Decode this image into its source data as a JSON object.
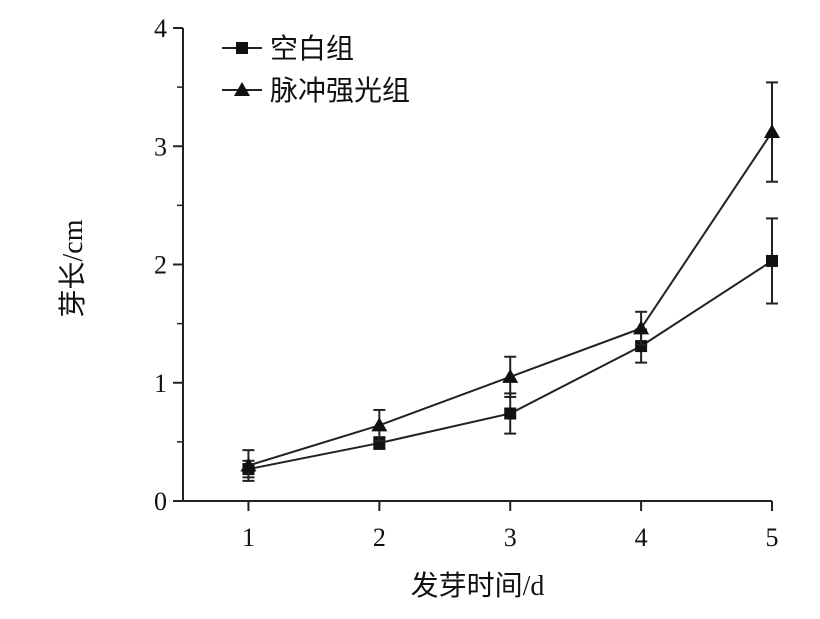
{
  "chart_data": {
    "type": "line",
    "xlabel": "发芽时间/d",
    "ylabel": "芽长/cm",
    "x": [
      1,
      2,
      3,
      4,
      5
    ],
    "xlim": [
      0.5,
      5
    ],
    "ylim": [
      0,
      4
    ],
    "xticks": [
      "1",
      "2",
      "3",
      "4",
      "5"
    ],
    "yticks": [
      "0",
      "1",
      "2",
      "3",
      "4"
    ],
    "grid": false,
    "legend_position": "top-left",
    "series": [
      {
        "name": "空白组",
        "marker": "square",
        "values": [
          0.27,
          0.49,
          0.74,
          1.31,
          2.03
        ],
        "errors": [
          0.07,
          0.05,
          0.17,
          0.14,
          0.36
        ]
      },
      {
        "name": "脉冲强光组",
        "marker": "triangle",
        "values": [
          0.3,
          0.64,
          1.05,
          1.46,
          3.12
        ],
        "errors": [
          0.13,
          0.13,
          0.17,
          0.14,
          0.42
        ]
      }
    ],
    "colors": {
      "line": "#222222",
      "marker": "#111111"
    }
  }
}
